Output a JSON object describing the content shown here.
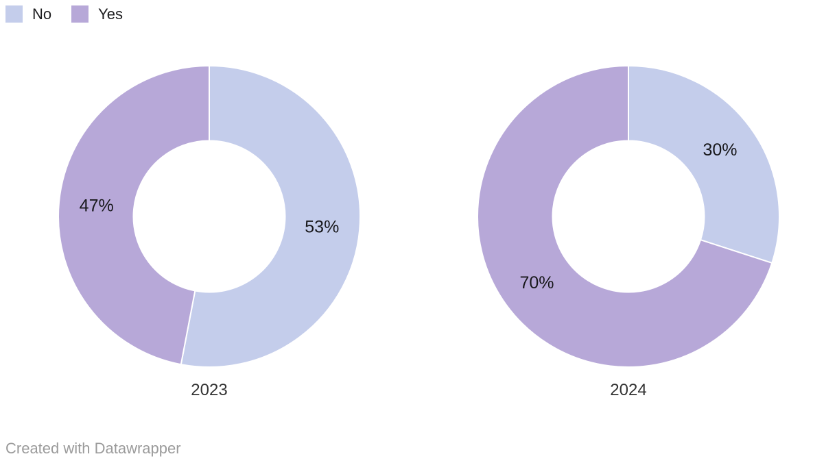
{
  "legend": {
    "items": [
      {
        "label": "No",
        "color": "#c4cdeb"
      },
      {
        "label": "Yes",
        "color": "#b7a8d8"
      }
    ]
  },
  "footer": {
    "credit": "Created with Datawrapper"
  },
  "chart_data": {
    "type": "pie",
    "subtype": "donut",
    "legend_position": "top-left",
    "legend": [
      "No",
      "Yes"
    ],
    "colors": {
      "No": "#c4cdeb",
      "Yes": "#b7a8d8"
    },
    "value_suffix": "%",
    "start_angle_deg": 0,
    "direction": "clockwise",
    "charts": [
      {
        "label": "2023",
        "slices": [
          {
            "name": "No",
            "value": 53
          },
          {
            "name": "Yes",
            "value": 47
          }
        ]
      },
      {
        "label": "2024",
        "slices": [
          {
            "name": "No",
            "value": 30
          },
          {
            "name": "Yes",
            "value": 70
          }
        ]
      }
    ]
  }
}
